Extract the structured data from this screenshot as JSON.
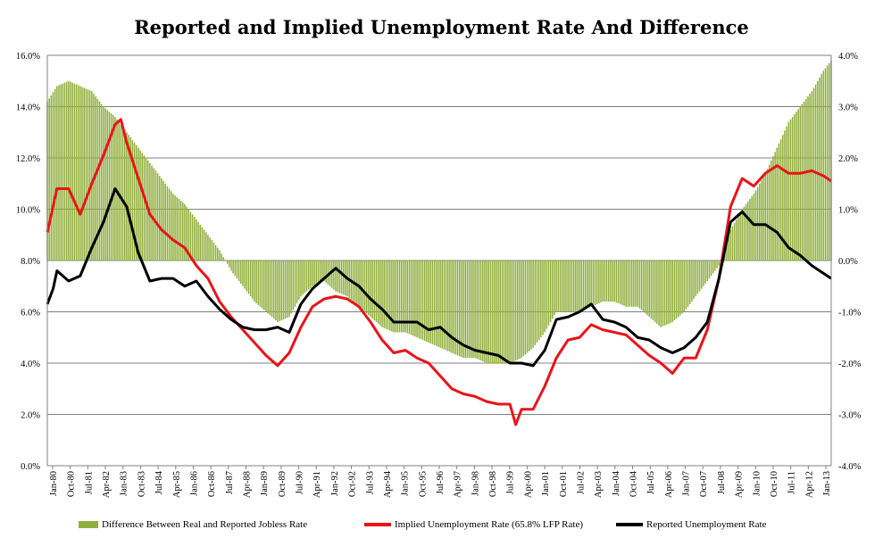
{
  "chart_data": {
    "type": "bar+line",
    "title": "Reported and Implied Unemployment Rate And Difference",
    "colors": {
      "bars": "#8faf3c",
      "implied": "#e8141a",
      "reported": "#000000",
      "grid": "#808080"
    },
    "y_left": {
      "min": 0,
      "max": 16,
      "ticks": [
        "0.0%",
        "2.0%",
        "4.0%",
        "6.0%",
        "8.0%",
        "10.0%",
        "12.0%",
        "14.0%",
        "16.0%"
      ]
    },
    "y_right": {
      "min": -4,
      "max": 4,
      "ticks": [
        "-4.0%",
        "-3.0%",
        "-2.0%",
        "-1.0%",
        "0.0%",
        "1.0%",
        "2.0%",
        "3.0%",
        "4.0%"
      ]
    },
    "x_ticks": [
      "Jan-80",
      "Oct-80",
      "Jul-81",
      "Apr-82",
      "Jan-83",
      "Oct-83",
      "Jul-84",
      "Apr-85",
      "Jan-86",
      "Oct-86",
      "Jul-87",
      "Apr-88",
      "Jan-89",
      "Oct-89",
      "Jul-90",
      "Apr-91",
      "Jan-92",
      "Oct-92",
      "Jul-93",
      "Apr-94",
      "Jan-95",
      "Oct-95",
      "Jul-96",
      "Apr-97",
      "Jan-98",
      "Oct-98",
      "Jul-99",
      "Apr-00",
      "Jan-01",
      "Oct-01",
      "Jul-02",
      "Apr-03",
      "Jan-04",
      "Oct-04",
      "Jul-05",
      "Apr-06",
      "Jan-07",
      "Oct-07",
      "Jul-08",
      "Apr-09",
      "Jan-10",
      "Oct-10",
      "Jul-11",
      "Apr-12",
      "Jan-13"
    ],
    "x_range": [
      "1980-01",
      "2013-10"
    ],
    "grid": true,
    "legend_position": "bottom",
    "series": [
      {
        "name": "Difference Between Real and Reported Jobless Rate",
        "type": "bar",
        "axis": "right",
        "points": [
          [
            "1980-01",
            3.1
          ],
          [
            "1980-06",
            3.4
          ],
          [
            "1980-12",
            3.5
          ],
          [
            "1981-06",
            3.4
          ],
          [
            "1981-12",
            3.3
          ],
          [
            "1982-06",
            3.0
          ],
          [
            "1982-12",
            2.8
          ],
          [
            "1983-06",
            2.5
          ],
          [
            "1983-12",
            2.2
          ],
          [
            "1984-06",
            1.9
          ],
          [
            "1984-12",
            1.6
          ],
          [
            "1985-06",
            1.3
          ],
          [
            "1985-12",
            1.1
          ],
          [
            "1986-06",
            0.8
          ],
          [
            "1986-12",
            0.5
          ],
          [
            "1987-06",
            0.2
          ],
          [
            "1987-12",
            -0.2
          ],
          [
            "1988-06",
            -0.5
          ],
          [
            "1988-12",
            -0.8
          ],
          [
            "1989-06",
            -1.0
          ],
          [
            "1989-12",
            -1.2
          ],
          [
            "1990-06",
            -1.1
          ],
          [
            "1990-12",
            -0.7
          ],
          [
            "1991-06",
            -0.5
          ],
          [
            "1991-12",
            -0.4
          ],
          [
            "1992-06",
            -0.6
          ],
          [
            "1992-12",
            -0.7
          ],
          [
            "1993-06",
            -0.9
          ],
          [
            "1993-12",
            -1.1
          ],
          [
            "1994-06",
            -1.3
          ],
          [
            "1994-12",
            -1.4
          ],
          [
            "1995-06",
            -1.4
          ],
          [
            "1995-12",
            -1.5
          ],
          [
            "1996-06",
            -1.6
          ],
          [
            "1996-12",
            -1.7
          ],
          [
            "1997-06",
            -1.8
          ],
          [
            "1997-12",
            -1.9
          ],
          [
            "1998-06",
            -1.9
          ],
          [
            "1998-12",
            -2.0
          ],
          [
            "1999-06",
            -2.0
          ],
          [
            "1999-12",
            -2.0
          ],
          [
            "2000-06",
            -1.9
          ],
          [
            "2000-12",
            -1.7
          ],
          [
            "2001-06",
            -1.4
          ],
          [
            "2001-12",
            -1.0
          ],
          [
            "2002-06",
            -1.0
          ],
          [
            "2002-12",
            -1.0
          ],
          [
            "2003-06",
            -0.9
          ],
          [
            "2003-12",
            -0.8
          ],
          [
            "2004-06",
            -0.8
          ],
          [
            "2004-12",
            -0.9
          ],
          [
            "2005-06",
            -0.9
          ],
          [
            "2005-12",
            -1.1
          ],
          [
            "2006-06",
            -1.3
          ],
          [
            "2006-12",
            -1.2
          ],
          [
            "2007-06",
            -1.0
          ],
          [
            "2007-12",
            -0.7
          ],
          [
            "2008-06",
            -0.4
          ],
          [
            "2008-12",
            -0.1
          ],
          [
            "2009-06",
            0.6
          ],
          [
            "2009-12",
            1.0
          ],
          [
            "2010-06",
            1.3
          ],
          [
            "2010-12",
            1.7
          ],
          [
            "2011-06",
            2.2
          ],
          [
            "2011-12",
            2.7
          ],
          [
            "2012-06",
            3.0
          ],
          [
            "2012-12",
            3.3
          ],
          [
            "2013-06",
            3.7
          ],
          [
            "2013-10",
            3.9
          ]
        ]
      },
      {
        "name": "Implied Unemployment Rate (65.8% LFP Rate)",
        "type": "line",
        "axis": "left",
        "points": [
          [
            "1980-01",
            9.1
          ],
          [
            "1980-06",
            10.8
          ],
          [
            "1980-12",
            10.8
          ],
          [
            "1981-06",
            9.8
          ],
          [
            "1981-12",
            11.0
          ],
          [
            "1982-06",
            12.1
          ],
          [
            "1982-12",
            13.3
          ],
          [
            "1983-03",
            13.5
          ],
          [
            "1983-06",
            12.6
          ],
          [
            "1983-12",
            11.2
          ],
          [
            "1984-06",
            9.8
          ],
          [
            "1984-12",
            9.2
          ],
          [
            "1985-06",
            8.8
          ],
          [
            "1985-12",
            8.5
          ],
          [
            "1986-06",
            7.8
          ],
          [
            "1986-12",
            7.3
          ],
          [
            "1987-06",
            6.4
          ],
          [
            "1987-12",
            5.8
          ],
          [
            "1988-06",
            5.3
          ],
          [
            "1988-12",
            4.8
          ],
          [
            "1989-06",
            4.3
          ],
          [
            "1989-12",
            3.9
          ],
          [
            "1990-06",
            4.4
          ],
          [
            "1990-12",
            5.4
          ],
          [
            "1991-06",
            6.2
          ],
          [
            "1991-12",
            6.5
          ],
          [
            "1992-06",
            6.6
          ],
          [
            "1992-12",
            6.5
          ],
          [
            "1993-06",
            6.2
          ],
          [
            "1993-12",
            5.6
          ],
          [
            "1994-06",
            4.9
          ],
          [
            "1994-12",
            4.4
          ],
          [
            "1995-06",
            4.5
          ],
          [
            "1995-12",
            4.2
          ],
          [
            "1996-06",
            4.0
          ],
          [
            "1996-12",
            3.5
          ],
          [
            "1997-06",
            3.0
          ],
          [
            "1997-12",
            2.8
          ],
          [
            "1998-06",
            2.7
          ],
          [
            "1998-12",
            2.5
          ],
          [
            "1999-06",
            2.4
          ],
          [
            "1999-12",
            2.4
          ],
          [
            "2000-03",
            1.6
          ],
          [
            "2000-06",
            2.2
          ],
          [
            "2000-12",
            2.2
          ],
          [
            "2001-06",
            3.1
          ],
          [
            "2001-12",
            4.2
          ],
          [
            "2002-06",
            4.9
          ],
          [
            "2002-12",
            5.0
          ],
          [
            "2003-06",
            5.5
          ],
          [
            "2003-12",
            5.3
          ],
          [
            "2004-06",
            5.2
          ],
          [
            "2004-12",
            5.1
          ],
          [
            "2005-06",
            4.7
          ],
          [
            "2005-12",
            4.3
          ],
          [
            "2006-06",
            4.0
          ],
          [
            "2006-12",
            3.6
          ],
          [
            "2007-06",
            4.2
          ],
          [
            "2007-12",
            4.2
          ],
          [
            "2008-06",
            5.3
          ],
          [
            "2008-12",
            7.3
          ],
          [
            "2009-06",
            10.1
          ],
          [
            "2009-12",
            11.2
          ],
          [
            "2010-06",
            10.9
          ],
          [
            "2010-12",
            11.4
          ],
          [
            "2011-06",
            11.7
          ],
          [
            "2011-12",
            11.4
          ],
          [
            "2012-06",
            11.4
          ],
          [
            "2012-12",
            11.5
          ],
          [
            "2013-06",
            11.3
          ],
          [
            "2013-10",
            11.1
          ]
        ]
      },
      {
        "name": "Reported Unemployment Rate",
        "type": "line",
        "axis": "left",
        "points": [
          [
            "1980-01",
            6.3
          ],
          [
            "1980-04",
            6.9
          ],
          [
            "1980-06",
            7.6
          ],
          [
            "1980-12",
            7.2
          ],
          [
            "1981-06",
            7.4
          ],
          [
            "1981-12",
            8.5
          ],
          [
            "1982-06",
            9.5
          ],
          [
            "1982-12",
            10.8
          ],
          [
            "1983-06",
            10.1
          ],
          [
            "1983-12",
            8.3
          ],
          [
            "1984-06",
            7.2
          ],
          [
            "1984-12",
            7.3
          ],
          [
            "1985-06",
            7.3
          ],
          [
            "1985-12",
            7.0
          ],
          [
            "1986-06",
            7.2
          ],
          [
            "1986-12",
            6.6
          ],
          [
            "1987-06",
            6.1
          ],
          [
            "1987-12",
            5.7
          ],
          [
            "1988-06",
            5.4
          ],
          [
            "1988-12",
            5.3
          ],
          [
            "1989-06",
            5.3
          ],
          [
            "1989-12",
            5.4
          ],
          [
            "1990-06",
            5.2
          ],
          [
            "1990-12",
            6.3
          ],
          [
            "1991-06",
            6.9
          ],
          [
            "1991-12",
            7.3
          ],
          [
            "1992-06",
            7.7
          ],
          [
            "1992-12",
            7.3
          ],
          [
            "1993-06",
            7.0
          ],
          [
            "1993-12",
            6.5
          ],
          [
            "1994-06",
            6.1
          ],
          [
            "1994-12",
            5.6
          ],
          [
            "1995-06",
            5.6
          ],
          [
            "1995-12",
            5.6
          ],
          [
            "1996-06",
            5.3
          ],
          [
            "1996-12",
            5.4
          ],
          [
            "1997-06",
            5.0
          ],
          [
            "1997-12",
            4.7
          ],
          [
            "1998-06",
            4.5
          ],
          [
            "1998-12",
            4.4
          ],
          [
            "1999-06",
            4.3
          ],
          [
            "1999-12",
            4.0
          ],
          [
            "2000-06",
            4.0
          ],
          [
            "2000-12",
            3.9
          ],
          [
            "2001-06",
            4.5
          ],
          [
            "2001-12",
            5.7
          ],
          [
            "2002-06",
            5.8
          ],
          [
            "2002-12",
            6.0
          ],
          [
            "2003-06",
            6.3
          ],
          [
            "2003-12",
            5.7
          ],
          [
            "2004-06",
            5.6
          ],
          [
            "2004-12",
            5.4
          ],
          [
            "2005-06",
            5.0
          ],
          [
            "2005-12",
            4.9
          ],
          [
            "2006-06",
            4.6
          ],
          [
            "2006-12",
            4.4
          ],
          [
            "2007-06",
            4.6
          ],
          [
            "2007-12",
            5.0
          ],
          [
            "2008-06",
            5.6
          ],
          [
            "2008-12",
            7.3
          ],
          [
            "2009-06",
            9.5
          ],
          [
            "2009-12",
            9.9
          ],
          [
            "2010-06",
            9.4
          ],
          [
            "2010-12",
            9.4
          ],
          [
            "2011-06",
            9.1
          ],
          [
            "2011-12",
            8.5
          ],
          [
            "2012-06",
            8.2
          ],
          [
            "2012-12",
            7.8
          ],
          [
            "2013-06",
            7.5
          ],
          [
            "2013-10",
            7.3
          ]
        ]
      }
    ]
  }
}
